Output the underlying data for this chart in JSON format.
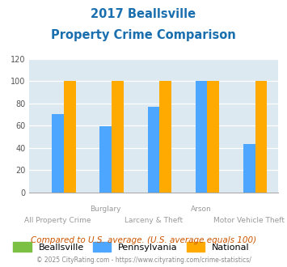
{
  "title_line1": "2017 Beallsville",
  "title_line2": "Property Crime Comparison",
  "categories": [
    "All Property Crime",
    "Burglary",
    "Larceny & Theft",
    "Arson",
    "Motor Vehicle Theft"
  ],
  "category_labels_top": [
    "",
    "Burglary",
    "",
    "Arson",
    ""
  ],
  "category_labels_bottom": [
    "All Property Crime",
    "",
    "Larceny & Theft",
    "",
    "Motor Vehicle Theft"
  ],
  "beallsville": [
    0,
    0,
    0,
    0,
    0
  ],
  "pennsylvania": [
    70,
    59,
    77,
    100,
    43
  ],
  "national": [
    100,
    100,
    100,
    100,
    100
  ],
  "colors": {
    "beallsville": "#7bc043",
    "pennsylvania": "#4da6ff",
    "national": "#ffaa00"
  },
  "ylim": [
    0,
    120
  ],
  "yticks": [
    0,
    20,
    40,
    60,
    80,
    100,
    120
  ],
  "title_color": "#1a6faf",
  "plot_bg": "#dce9f0",
  "legend_labels": [
    "Beallsville",
    "Pennsylvania",
    "National"
  ],
  "footer_text": "Compared to U.S. average. (U.S. average equals 100)",
  "copyright_text": "© 2025 CityRating.com - https://www.cityrating.com/crime-statistics/",
  "footer_color": "#cc5500",
  "copyright_color": "#888888"
}
